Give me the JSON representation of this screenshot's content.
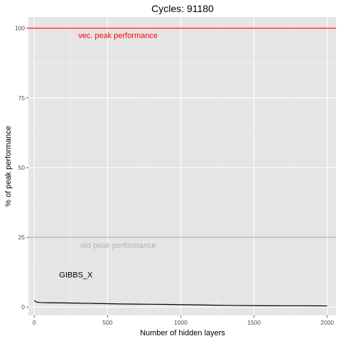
{
  "chart_data": {
    "type": "line",
    "title": "Cycles:  91180",
    "xlabel": "Number of hidden layers",
    "ylabel": "% of peak performance",
    "xlim": [
      -40,
      2060
    ],
    "ylim": [
      -3,
      104
    ],
    "x_ticks": [
      0,
      500,
      1000,
      1500,
      2000
    ],
    "y_ticks": [
      0,
      25,
      50,
      75,
      100
    ],
    "grid": true,
    "series": [
      {
        "name": "GIBBS_X",
        "color": "#000000",
        "x": [
          1,
          10,
          25,
          50,
          100,
          200,
          300,
          400,
          500,
          600,
          700,
          800,
          900,
          1000,
          1100,
          1200,
          1300,
          1400,
          1500,
          1600,
          1700,
          1800,
          1900,
          2000
        ],
        "y": [
          2.4,
          1.9,
          1.7,
          1.6,
          1.55,
          1.5,
          1.4,
          1.3,
          1.2,
          1.1,
          1.05,
          1.0,
          0.95,
          0.85,
          0.78,
          0.7,
          0.62,
          0.55,
          0.5,
          0.48,
          0.46,
          0.45,
          0.44,
          0.43
        ]
      }
    ],
    "reference_lines": [
      {
        "label": "vec. peak performance",
        "y": 100,
        "color": "#ff0000"
      },
      {
        "label": "old peak performance",
        "y": 25,
        "color": "#b3b3b3"
      }
    ],
    "annotations": [
      {
        "text": "vec. peak performance",
        "x": 300,
        "y": 97.5,
        "color": "#ff0000"
      },
      {
        "text": "old peak performance",
        "x": 315,
        "y": 22.2,
        "color": "#b3b3b3"
      },
      {
        "text": "GIBBS_X",
        "x": 170,
        "y": 11.7,
        "color": "#000000"
      }
    ]
  }
}
